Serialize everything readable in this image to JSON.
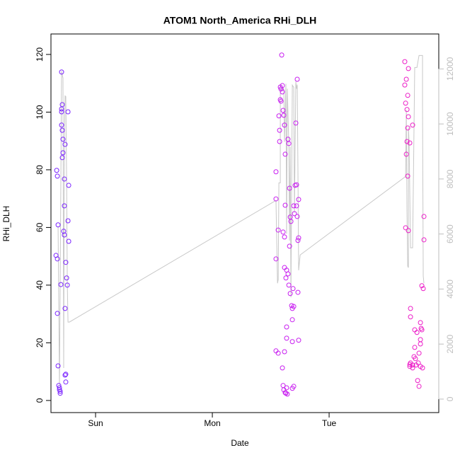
{
  "chart_data": {
    "type": "scatter",
    "title": "ATOM1 North_America RHi_DLH",
    "x_label": "Date",
    "y_label": "RHi_DLH",
    "xlim": [
      0.618,
      3.939
    ],
    "xticks": [
      {
        "value": 1,
        "label": "Sun"
      },
      {
        "value": 2,
        "label": "Mon"
      },
      {
        "value": 3,
        "label": "Tue"
      }
    ],
    "ylim": [
      -4.2,
      127.1
    ],
    "yticks": [
      0,
      20,
      40,
      60,
      80,
      100,
      120
    ],
    "y2lim": [
      -490,
      13270
    ],
    "y2ticks": [
      0,
      2000,
      4000,
      6000,
      8000,
      10000,
      12000
    ],
    "y2_color": "#bebebe",
    "grid": false,
    "series": [
      {
        "color": "#7a22ff",
        "x": [
          0.667,
          0.673,
          0.661,
          0.673,
          0.679,
          0.673,
          0.679,
          0.685,
          0.691,
          0.691,
          0.697,
          0.697,
          0.703,
          0.709,
          0.715,
          0.709,
          0.709,
          0.709,
          0.715,
          0.721,
          0.721,
          0.715,
          0.739,
          0.733,
          0.733,
          0.727,
          0.733,
          0.745,
          0.752,
          0.758,
          0.764,
          0.77,
          0.77,
          0.764,
          0.739,
          0.745,
          0.739,
          0.745
        ],
        "values": [
          79.8,
          77.8,
          50.3,
          49.1,
          60.9,
          30.2,
          12.0,
          5.2,
          4.4,
          3.7,
          3.2,
          2.5,
          40.2,
          113.9,
          102.6,
          101.1,
          100.1,
          95.5,
          93.7,
          90.6,
          85.9,
          84.2,
          88.8,
          76.8,
          67.5,
          58.7,
          57.4,
          47.9,
          42.5,
          40.0,
          62.3,
          74.6,
          55.2,
          100.1,
          31.9,
          9.1,
          8.8,
          6.4
        ]
      },
      {
        "color": "#c81ef0",
        "x": [
          2.545,
          2.545,
          2.564,
          2.545,
          2.545,
          2.564,
          2.57,
          2.576,
          2.576,
          2.582,
          2.588,
          2.582,
          2.588,
          2.594,
          2.6,
          2.6,
          2.606,
          2.612,
          2.618,
          2.624,
          2.606,
          2.618,
          2.624,
          2.618,
          2.63,
          2.636,
          2.636,
          2.636,
          2.618,
          2.6,
          2.606,
          2.612,
          2.624,
          2.63,
          2.642,
          2.636,
          2.648,
          2.655,
          2.661,
          2.661,
          2.655,
          2.667,
          2.667,
          2.673,
          2.679,
          2.685,
          2.691,
          2.685,
          2.697,
          2.697,
          2.703,
          2.709,
          2.715,
          2.721,
          2.721,
          2.727,
          2.727,
          2.733,
          2.739,
          2.733,
          2.739,
          2.739,
          2.685,
          2.697,
          2.685,
          2.648
        ],
        "values": [
          79.3,
          69.9,
          59.1,
          49.1,
          17.2,
          16.4,
          98.7,
          89.8,
          93.7,
          108.7,
          108.0,
          104.3,
          103.8,
          119.8,
          109.2,
          107.0,
          100.6,
          98.9,
          95.5,
          85.4,
          58.4,
          56.7,
          67.7,
          46.1,
          42.5,
          45.2,
          25.5,
          21.6,
          16.9,
          11.3,
          5.2,
          3.7,
          2.7,
          2.5,
          2.2,
          4.4,
          90.6,
          89.1,
          73.6,
          53.5,
          40.0,
          37.1,
          63.6,
          62.1,
          32.9,
          31.9,
          38.8,
          28.0,
          32.6,
          67.5,
          64.8,
          74.6,
          96.2,
          67.5,
          74.8,
          111.4,
          63.8,
          55.5,
          56.4,
          37.5,
          69.7,
          20.9,
          20.4,
          4.9,
          4.2,
          43.9
        ]
      },
      {
        "color": "#ec1ec8",
        "x": [
          3.648,
          3.661,
          3.648,
          3.655,
          3.667,
          3.673,
          3.679,
          3.667,
          3.661,
          3.673,
          3.679,
          3.691,
          3.673,
          3.655,
          3.679,
          3.697,
          3.697,
          3.715,
          3.691,
          3.691,
          3.697,
          3.715,
          3.715,
          3.727,
          3.733,
          3.733,
          3.739,
          3.745,
          3.752,
          3.758,
          3.77,
          3.764,
          3.77,
          3.782,
          3.782,
          3.782,
          3.788,
          3.794,
          3.794,
          3.806,
          3.812,
          3.812,
          3.8,
          3.782
        ],
        "values": [
          117.5,
          111.4,
          109.4,
          103.1,
          100.9,
          105.8,
          98.4,
          89.8,
          85.4,
          94.5,
          115.1,
          89.3,
          77.8,
          59.9,
          58.9,
          29.0,
          31.9,
          95.5,
          12.5,
          11.8,
          13.0,
          12.3,
          11.3,
          15.2,
          24.5,
          18.4,
          14.5,
          12.3,
          23.6,
          6.9,
          4.9,
          13.0,
          16.4,
          19.6,
          21.1,
          27.0,
          25.0,
          24.5,
          39.8,
          38.8,
          63.8,
          55.7,
          11.3,
          11.8
        ]
      },
      {
        "type": "line",
        "axis": "y2",
        "color": "#c8c8c8",
        "x": [
          0.679,
          0.691,
          0.703,
          0.709,
          0.721,
          0.727,
          0.733,
          0.739,
          0.745,
          0.752,
          0.758,
          0.764,
          0.776,
          2.545,
          2.558,
          2.564,
          2.57,
          2.582,
          2.582,
          2.6,
          2.612,
          2.618,
          2.63,
          2.636,
          2.642,
          2.655,
          2.661,
          2.667,
          2.673,
          2.685,
          2.697,
          2.703,
          2.715,
          2.721,
          2.727,
          2.733,
          2.739,
          2.752,
          3.655,
          3.661,
          3.667,
          3.673,
          3.679,
          3.679,
          3.685,
          3.697,
          3.715,
          3.733,
          3.752,
          3.77,
          3.8,
          3.8,
          3.806,
          3.812
        ],
        "values": [
          6270,
          490,
          8070,
          11920,
          11660,
          1130,
          9350,
          11020,
          11000,
          8070,
          4210,
          2800,
          2800,
          7220,
          4210,
          4340,
          7860,
          7860,
          11410,
          11280,
          11280,
          9350,
          11460,
          6010,
          11280,
          9220,
          5760,
          9170,
          3700,
          11410,
          11330,
          6780,
          11540,
          11280,
          11430,
          8320,
          4680,
          5240,
          8090,
          10510,
          6780,
          4830,
          4780,
          9870,
          9350,
          5500,
          5500,
          12050,
          12050,
          12490,
          12490,
          10640,
          4470,
          4210
        ]
      }
    ]
  }
}
